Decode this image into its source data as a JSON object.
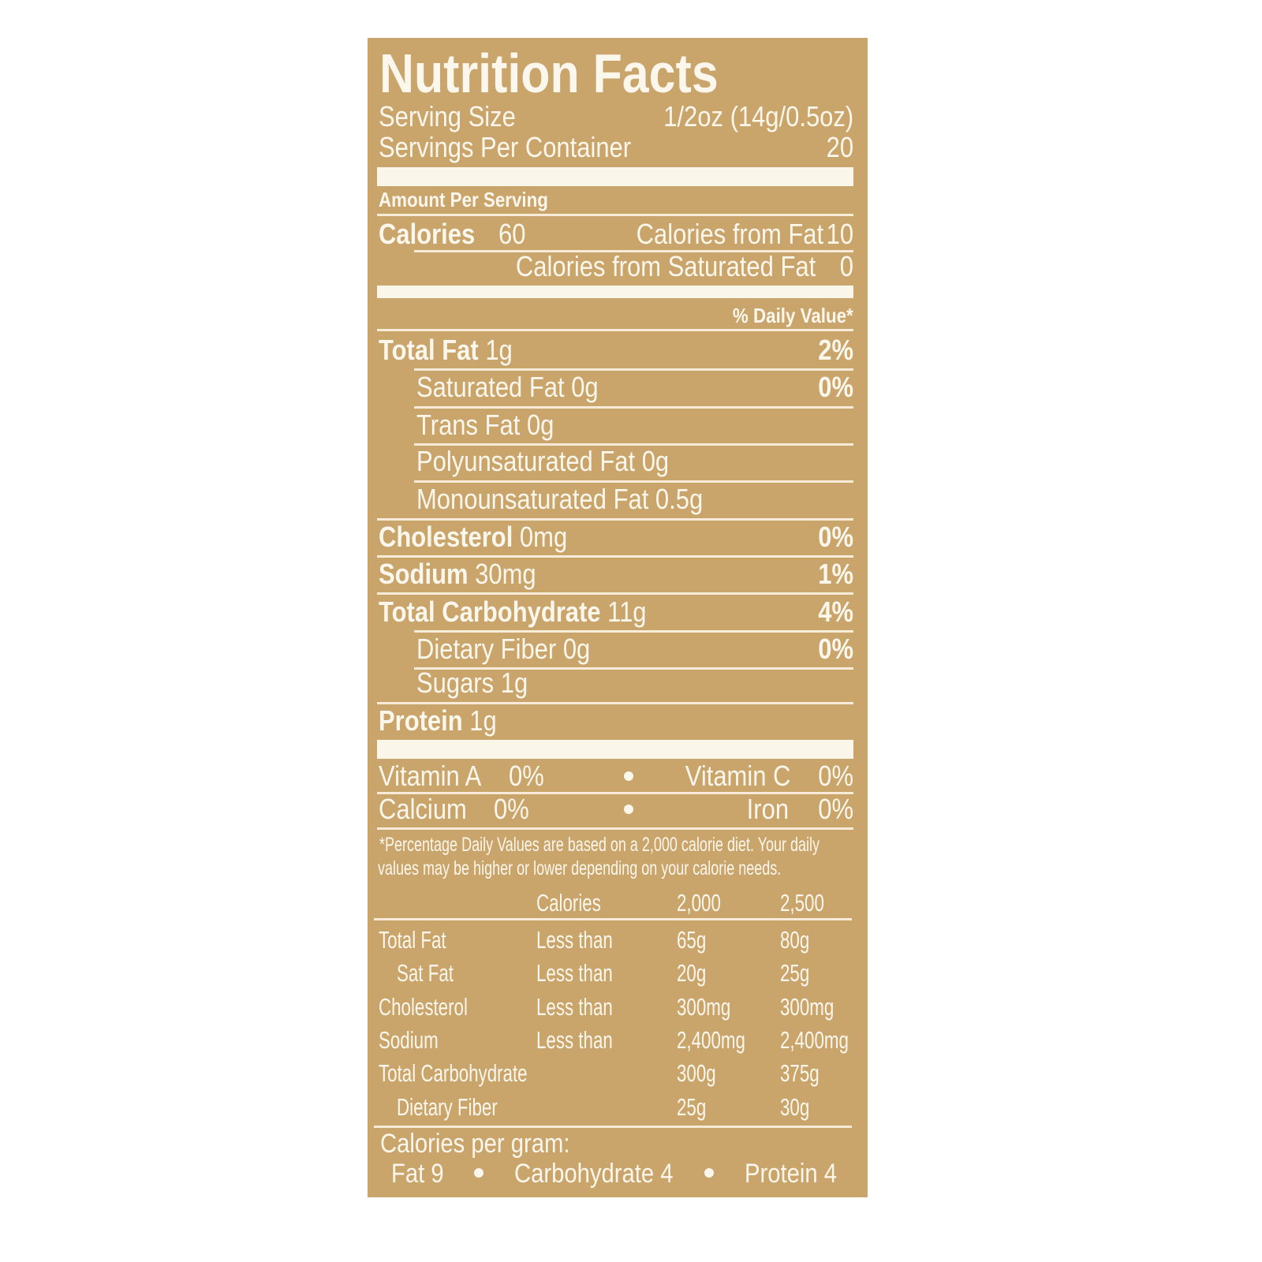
{
  "title": "Nutrition Facts",
  "serving_size": {
    "label": "Serving Size",
    "value": "1/2oz (14g/0.5oz)"
  },
  "servings_per_container": {
    "label": "Servings Per Container",
    "value": "20"
  },
  "amount_per_serving": "Amount Per Serving",
  "calories": {
    "label": "Calories",
    "value": "60",
    "from_fat_label": "Calories from Fat",
    "from_fat": "10",
    "from_sat_fat_label": "Calories from Saturated Fat",
    "from_sat_fat": "0"
  },
  "daily_value_header": "% Daily Value*",
  "nutrients": [
    {
      "name": "Total Fat",
      "amount": "1g",
      "dv": "2%"
    },
    {
      "name": "Saturated Fat",
      "amount": "0g",
      "dv": "0%"
    },
    {
      "name": "Trans Fat",
      "amount": "0g",
      "dv": ""
    },
    {
      "name": "Polyunsaturated Fat",
      "amount": "0g",
      "dv": ""
    },
    {
      "name": "Monounsaturated Fat",
      "amount": "0.5g",
      "dv": ""
    },
    {
      "name": "Cholesterol",
      "amount": "0mg",
      "dv": "0%"
    },
    {
      "name": "Sodium",
      "amount": "30mg",
      "dv": "1%"
    },
    {
      "name": "Total Carbohydrate",
      "amount": "11g",
      "dv": "4%"
    },
    {
      "name": "Dietary Fiber",
      "amount": "0g",
      "dv": "0%"
    },
    {
      "name": "Sugars",
      "amount": "1g",
      "dv": ""
    },
    {
      "name": "Protein",
      "amount": "1g",
      "dv": ""
    }
  ],
  "vitamins": [
    {
      "name": "Vitamin A",
      "dv": "0%"
    },
    {
      "name": "Vitamin C",
      "dv": "0%"
    },
    {
      "name": "Calcium",
      "dv": "0%"
    },
    {
      "name": "Iron",
      "dv": "0%"
    }
  ],
  "footnote": [
    "*Percentage Daily Values are based on a 2,000 calorie diet. Your daily",
    "values may be higher or lower depending on your calorie needs."
  ],
  "dv_table": {
    "headers": [
      "",
      "Calories",
      "2,000",
      "2,500"
    ],
    "rows": [
      [
        "Total Fat",
        "Less than",
        "65g",
        "80g"
      ],
      [
        "Sat Fat",
        "Less than",
        "20g",
        "25g"
      ],
      [
        "Cholesterol",
        "Less than",
        "300mg",
        "300mg"
      ],
      [
        "Sodium",
        "Less than",
        "2,400mg",
        "2,400mg"
      ],
      [
        "Total Carbohydrate",
        "",
        "300g",
        "375g"
      ],
      [
        "Dietary Fiber",
        "",
        "25g",
        "30g"
      ]
    ]
  },
  "calories_per_gram": {
    "label": "Calories per gram:",
    "items": [
      "Fat 9",
      "Carbohydrate 4",
      "Protein 4"
    ]
  },
  "colors": {
    "background": "#c9a46b",
    "text": "#fcf7ec"
  }
}
